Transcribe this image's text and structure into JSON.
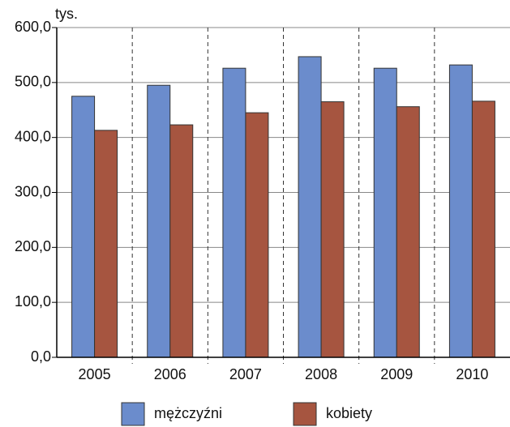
{
  "chart_data": {
    "type": "bar",
    "unit_label": "tys.",
    "categories": [
      "2005",
      "2006",
      "2007",
      "2008",
      "2009",
      "2010"
    ],
    "series": [
      {
        "name": "mężczyźni",
        "color": "#6b8ccc",
        "values": [
          475,
          495,
          526,
          547,
          526,
          532
        ]
      },
      {
        "name": "kobiety",
        "color": "#a65540",
        "values": [
          413,
          423,
          445,
          465,
          456,
          466
        ]
      }
    ],
    "ylim": [
      0,
      600
    ],
    "yticks": [
      {
        "value": 0,
        "label": "0,0"
      },
      {
        "value": 100,
        "label": "100,0"
      },
      {
        "value": 200,
        "label": "200,0"
      },
      {
        "value": 300,
        "label": "300,0"
      },
      {
        "value": 400,
        "label": "400,0"
      },
      {
        "value": 500,
        "label": "500,0"
      },
      {
        "value": 600,
        "label": "600,0"
      }
    ],
    "grid": true,
    "legend": "bottom"
  }
}
